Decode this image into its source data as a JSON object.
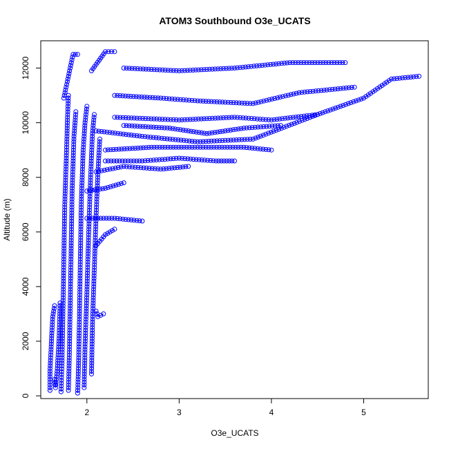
{
  "chart_data": {
    "type": "scatter",
    "title": "ATOM3 Southbound O3e_UCATS",
    "xlabel": "O3e_UCATS",
    "ylabel": "Altitude (m)",
    "xlim": [
      1.5,
      5.7
    ],
    "ylim": [
      -100,
      13000
    ],
    "x_ticks": [
      2,
      3,
      4,
      5
    ],
    "y_ticks": [
      0,
      2000,
      4000,
      6000,
      8000,
      10000,
      12000
    ],
    "marker": "open-circle",
    "connected": true,
    "grid": false,
    "series": [
      {
        "color": "#0000ff",
        "segments": [
          [
            [
              1.6,
              200
            ],
            [
              1.6,
              900
            ],
            [
              1.61,
              1600
            ],
            [
              1.62,
              2300
            ],
            [
              1.63,
              2900
            ],
            [
              1.65,
              3300
            ]
          ],
          [
            [
              1.72,
              150
            ],
            [
              1.73,
              1200
            ],
            [
              1.74,
              3000
            ],
            [
              1.75,
              5000
            ],
            [
              1.76,
              7000
            ],
            [
              1.78,
              9000
            ],
            [
              1.79,
              10200
            ],
            [
              1.8,
              11000
            ]
          ],
          [
            [
              1.8,
              200
            ],
            [
              1.81,
              1500
            ],
            [
              1.82,
              3500
            ],
            [
              1.83,
              5500
            ],
            [
              1.84,
              7500
            ],
            [
              1.86,
              9500
            ],
            [
              1.88,
              10400
            ]
          ],
          [
            [
              1.9,
              100
            ],
            [
              1.91,
              1200
            ],
            [
              1.92,
              3000
            ],
            [
              1.93,
              5200
            ],
            [
              1.94,
              7200
            ],
            [
              1.96,
              9000
            ],
            [
              1.98,
              10000
            ],
            [
              2.0,
              10600
            ]
          ],
          [
            [
              1.97,
              300
            ],
            [
              1.98,
              1800
            ],
            [
              2.0,
              3800
            ],
            [
              2.02,
              6000
            ],
            [
              2.04,
              8000
            ],
            [
              2.06,
              9600
            ],
            [
              2.08,
              10300
            ]
          ],
          [
            [
              2.05,
              800
            ],
            [
              2.06,
              2600
            ],
            [
              2.08,
              4600
            ],
            [
              2.1,
              6600
            ],
            [
              2.12,
              8200
            ],
            [
              2.14,
              9400
            ]
          ],
          [
            [
              1.75,
              10900
            ],
            [
              1.8,
              11700
            ],
            [
              1.85,
              12500
            ],
            [
              1.9,
              12500
            ]
          ],
          [
            [
              2.05,
              11900
            ],
            [
              2.2,
              12600
            ],
            [
              2.3,
              12600
            ]
          ],
          [
            [
              2.4,
              12000
            ],
            [
              3.0,
              11900
            ],
            [
              3.6,
              12000
            ],
            [
              4.2,
              12200
            ],
            [
              4.8,
              12200
            ]
          ],
          [
            [
              2.3,
              11000
            ],
            [
              2.8,
              10900
            ],
            [
              3.2,
              10800
            ],
            [
              3.8,
              10700
            ],
            [
              4.3,
              11100
            ],
            [
              4.9,
              11300
            ]
          ],
          [
            [
              2.3,
              10200
            ],
            [
              3.0,
              10100
            ],
            [
              3.6,
              10200
            ],
            [
              4.0,
              10100
            ],
            [
              4.5,
              10300
            ]
          ],
          [
            [
              2.1,
              9700
            ],
            [
              2.6,
              9500
            ],
            [
              3.2,
              9300
            ],
            [
              3.8,
              9400
            ],
            [
              4.5,
              10300
            ],
            [
              5.0,
              10900
            ],
            [
              5.3,
              11600
            ],
            [
              5.6,
              11700
            ]
          ],
          [
            [
              2.4,
              9900
            ],
            [
              2.9,
              9800
            ],
            [
              3.3,
              9600
            ],
            [
              3.7,
              9800
            ],
            [
              4.1,
              9900
            ]
          ],
          [
            [
              2.2,
              9000
            ],
            [
              2.7,
              9100
            ],
            [
              3.2,
              9100
            ],
            [
              3.7,
              9100
            ],
            [
              4.0,
              9000
            ]
          ],
          [
            [
              2.2,
              8600
            ],
            [
              2.6,
              8600
            ],
            [
              3.0,
              8700
            ],
            [
              3.4,
              8600
            ],
            [
              3.6,
              8600
            ]
          ],
          [
            [
              2.1,
              8200
            ],
            [
              2.4,
              8400
            ],
            [
              2.8,
              8300
            ],
            [
              3.1,
              8400
            ]
          ],
          [
            [
              2.0,
              6500
            ],
            [
              2.3,
              6500
            ],
            [
              2.6,
              6400
            ]
          ],
          [
            [
              2.1,
              3100
            ],
            [
              2.12,
              2900
            ],
            [
              2.18,
              3000
            ]
          ],
          [
            [
              1.65,
              600
            ],
            [
              1.66,
              300
            ],
            [
              1.68,
              1000
            ],
            [
              1.7,
              2200
            ],
            [
              1.71,
              3400
            ]
          ],
          [
            [
              2.0,
              7500
            ],
            [
              2.2,
              7600
            ],
            [
              2.4,
              7800
            ]
          ],
          [
            [
              2.1,
              5500
            ],
            [
              2.2,
              5900
            ],
            [
              2.3,
              6100
            ]
          ]
        ]
      }
    ]
  }
}
